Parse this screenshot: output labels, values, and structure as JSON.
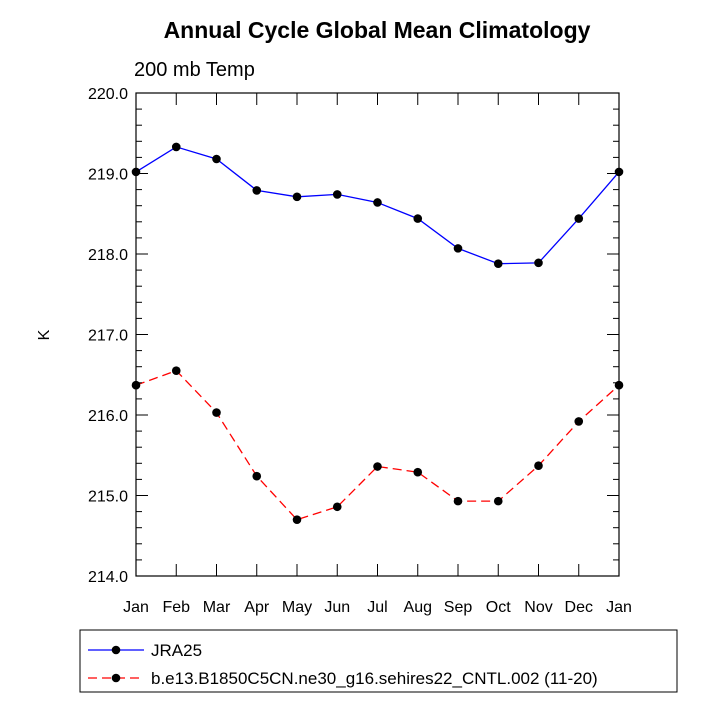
{
  "chart_data": {
    "type": "line",
    "title": "Annual Cycle Global Mean Climatology",
    "subtitle": "200 mb Temp",
    "xlabel": "",
    "ylabel": "K",
    "categories": [
      "Jan",
      "Feb",
      "Mar",
      "Apr",
      "May",
      "Jun",
      "Jul",
      "Aug",
      "Sep",
      "Oct",
      "Nov",
      "Dec",
      "Jan"
    ],
    "ylim": [
      214.0,
      220.0
    ],
    "yticks": [
      "214.0",
      "215.0",
      "216.0",
      "217.0",
      "218.0",
      "219.0",
      "220.0"
    ],
    "grid": false,
    "legend_position": "bottom",
    "series": [
      {
        "name": "JRA25",
        "color": "#0000ff",
        "line_style": "solid",
        "marker": "filled-circle",
        "values": [
          219.02,
          219.33,
          219.18,
          218.79,
          218.71,
          218.74,
          218.64,
          218.44,
          218.07,
          217.88,
          217.89,
          218.44,
          219.02
        ]
      },
      {
        "name": "b.e13.B1850C5CN.ne30_g16.sehires22_CNTL.002 (11-20)",
        "color": "#ff0000",
        "line_style": "dashed",
        "marker": "filled-circle",
        "values": [
          216.37,
          216.55,
          216.03,
          215.24,
          214.7,
          214.86,
          215.36,
          215.29,
          214.93,
          214.93,
          215.37,
          215.92,
          216.37
        ]
      }
    ]
  }
}
